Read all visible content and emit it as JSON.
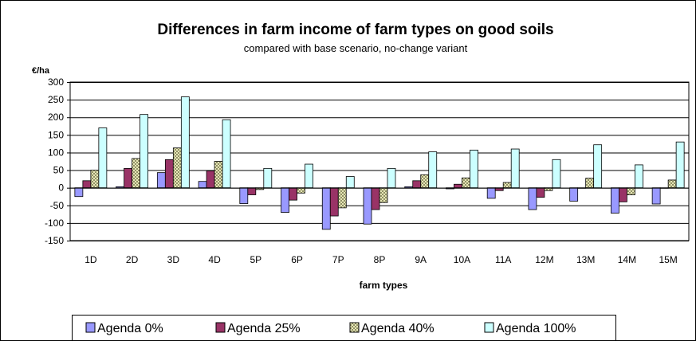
{
  "chart_data": {
    "type": "bar",
    "title": "Differences in farm income of farm types on good soils",
    "subtitle": "compared with base scenario, no-change variant",
    "ylabel": "€/ha",
    "xlabel": "farm types",
    "ylim": [
      -150,
      300
    ],
    "yticks": [
      "300",
      "250",
      "200",
      "150",
      "100",
      "50",
      "0",
      "-50",
      "-100",
      "-150"
    ],
    "grid": true,
    "legend": "bottom",
    "categories": [
      "1D",
      "2D",
      "3D",
      "4D",
      "5P",
      "6P",
      "7P",
      "8P",
      "9A",
      "10A",
      "11A",
      "12M",
      "13M",
      "14M",
      "15M"
    ],
    "series": [
      {
        "name": "Agenda 0%",
        "color": "#9999ff",
        "pattern": "solid",
        "values": [
          -25,
          3,
          43,
          18,
          -45,
          -70,
          -118,
          -103,
          3,
          -3,
          -30,
          -62,
          -38,
          -72,
          -46
        ]
      },
      {
        "name": "Agenda 25%",
        "color": "#993366",
        "pattern": "solid",
        "values": [
          20,
          55,
          80,
          48,
          -20,
          -35,
          -80,
          -62,
          20,
          10,
          -8,
          -27,
          0,
          -40,
          0
        ]
      },
      {
        "name": "Agenda 40%",
        "color": "#ffffcc",
        "pattern": "hatch",
        "values": [
          50,
          83,
          113,
          75,
          -5,
          -15,
          -57,
          -42,
          37,
          28,
          15,
          -8,
          27,
          -20,
          22
        ]
      },
      {
        "name": "Agenda 100%",
        "color": "#ccffff",
        "pattern": "solid",
        "values": [
          170,
          208,
          258,
          193,
          55,
          67,
          32,
          55,
          102,
          107,
          110,
          80,
          122,
          65,
          130
        ]
      }
    ]
  }
}
